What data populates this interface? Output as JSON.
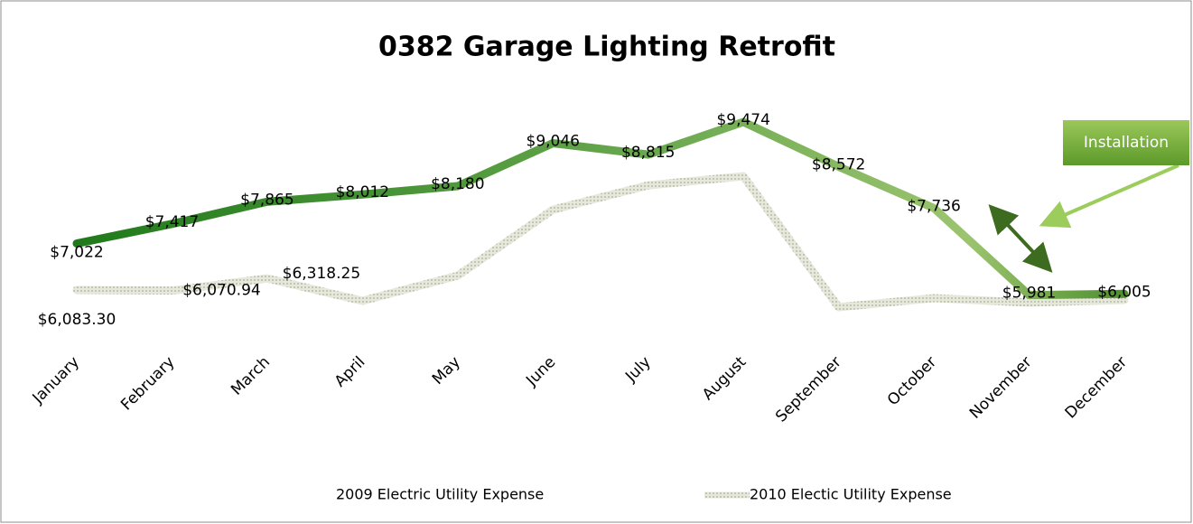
{
  "chart_data": {
    "type": "line",
    "title": "0382 Garage Lighting Retrofit",
    "categories": [
      "January",
      "February",
      "March",
      "April",
      "May",
      "June",
      "July",
      "August",
      "September",
      "October",
      "November",
      "December"
    ],
    "series": [
      {
        "name": "2009 Electric Utility Expense",
        "color": "#3d8b2c",
        "values": [
          7022,
          7417,
          7865,
          8012,
          8180,
          9046,
          8815,
          9474,
          8572,
          7736,
          5981,
          6005
        ],
        "value_labels": [
          "$7,022",
          "$7,417",
          "$7,865",
          "$8,012",
          "$8,180",
          "$9,046",
          "$8,815",
          "$9,474",
          "$8,572",
          "$7,736",
          "$5,981",
          "$6,005"
        ]
      },
      {
        "name": "2010 Electic Utility Expense",
        "color": "#d9dccc",
        "values": [
          6083.3,
          6070.94,
          6318.25,
          5864,
          6374,
          7704,
          8196,
          8378,
          5737,
          5919,
          5828,
          5883
        ],
        "value_labels": [
          "$6,083.30",
          "$6,070.94",
          "$6,318.25",
          null,
          null,
          null,
          null,
          null,
          null,
          null,
          null,
          null
        ]
      }
    ],
    "annotation": "Installation",
    "legend": "bottom"
  }
}
